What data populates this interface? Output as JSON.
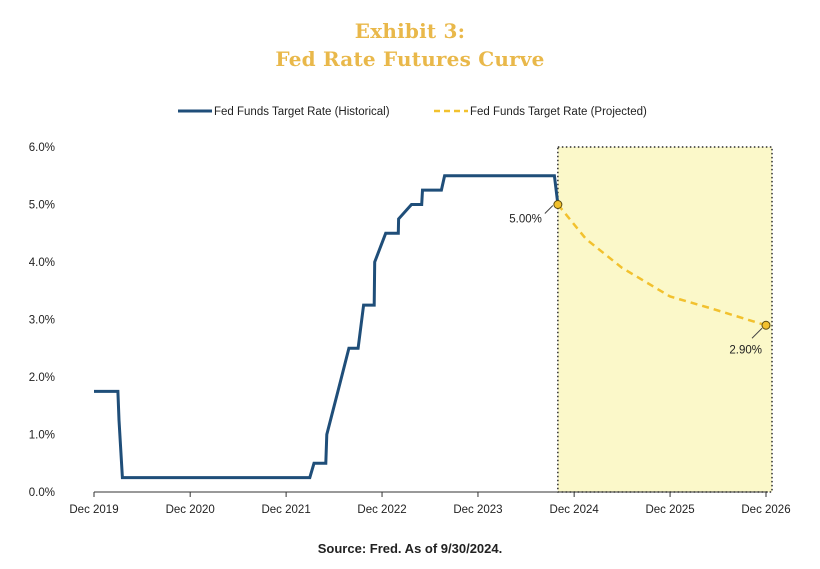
{
  "title_line1": "Exhibit 3:",
  "title_line2": "Fed Rate Futures Curve",
  "source": "Source: Fred. As of 9/30/2024.",
  "chart_data": {
    "type": "line",
    "x_axis": {
      "type": "date",
      "range": [
        "2019-12-01",
        "2026-12-01"
      ],
      "ticks": [
        {
          "date": "2019-12-01",
          "label": "Dec 2019"
        },
        {
          "date": "2020-12-01",
          "label": "Dec 2020"
        },
        {
          "date": "2021-12-01",
          "label": "Dec 2021"
        },
        {
          "date": "2022-12-01",
          "label": "Dec 2022"
        },
        {
          "date": "2023-12-01",
          "label": "Dec 2023"
        },
        {
          "date": "2024-12-01",
          "label": "Dec 2024"
        },
        {
          "date": "2025-12-01",
          "label": "Dec 2025"
        },
        {
          "date": "2026-12-01",
          "label": "Dec 2026"
        }
      ]
    },
    "y_axis": {
      "range": [
        0,
        6
      ],
      "ticks": [
        {
          "value": 0,
          "label": "0.0%"
        },
        {
          "value": 1,
          "label": "1.0%"
        },
        {
          "value": 2,
          "label": "2.0%"
        },
        {
          "value": 3,
          "label": "3.0%"
        },
        {
          "value": 4,
          "label": "4.0%"
        },
        {
          "value": 5,
          "label": "5.0%"
        },
        {
          "value": 6,
          "label": "6.0%"
        }
      ]
    },
    "grid": false,
    "legend_position": "top-center",
    "series": [
      {
        "name": "Fed Funds Target Rate (Historical)",
        "color": "#1f4e79",
        "style": "solid",
        "points": [
          {
            "x": "2019-12-01",
            "y": 1.75
          },
          {
            "x": "2020-03-01",
            "y": 1.75
          },
          {
            "x": "2020-03-05",
            "y": 1.25
          },
          {
            "x": "2020-03-18",
            "y": 0.25
          },
          {
            "x": "2022-03-01",
            "y": 0.25
          },
          {
            "x": "2022-03-17",
            "y": 0.5
          },
          {
            "x": "2022-05-01",
            "y": 0.5
          },
          {
            "x": "2022-05-05",
            "y": 1.0
          },
          {
            "x": "2022-06-16",
            "y": 1.75
          },
          {
            "x": "2022-07-28",
            "y": 2.5
          },
          {
            "x": "2022-09-01",
            "y": 2.5
          },
          {
            "x": "2022-09-22",
            "y": 3.25
          },
          {
            "x": "2022-11-01",
            "y": 3.25
          },
          {
            "x": "2022-11-03",
            "y": 4.0
          },
          {
            "x": "2022-12-15",
            "y": 4.5
          },
          {
            "x": "2023-02-01",
            "y": 4.5
          },
          {
            "x": "2023-02-02",
            "y": 4.75
          },
          {
            "x": "2023-03-23",
            "y": 5.0
          },
          {
            "x": "2023-05-01",
            "y": 5.0
          },
          {
            "x": "2023-05-04",
            "y": 5.25
          },
          {
            "x": "2023-07-15",
            "y": 5.25
          },
          {
            "x": "2023-07-27",
            "y": 5.5
          },
          {
            "x": "2024-09-17",
            "y": 5.5
          },
          {
            "x": "2024-09-30",
            "y": 5.0
          }
        ]
      },
      {
        "name": "Fed Funds Target Rate (Projected)",
        "color": "#f2c12e",
        "style": "dashed",
        "points": [
          {
            "x": "2024-09-30",
            "y": 5.0
          },
          {
            "x": "2025-01-15",
            "y": 4.4
          },
          {
            "x": "2025-06-01",
            "y": 3.9
          },
          {
            "x": "2025-12-01",
            "y": 3.4
          },
          {
            "x": "2026-05-01",
            "y": 3.2
          },
          {
            "x": "2026-12-01",
            "y": 2.9
          }
        ]
      }
    ],
    "annotations": [
      {
        "x": "2024-09-30",
        "y": 5.0,
        "label": "5.00%"
      },
      {
        "x": "2026-12-01",
        "y": 2.9,
        "label": "2.90%"
      }
    ],
    "highlight_region": {
      "x_start": "2024-09-30",
      "x_end": "2026-12-01",
      "y_start": 0,
      "y_end": 6,
      "fill": "#fbf8c9",
      "border": "dotted"
    }
  }
}
